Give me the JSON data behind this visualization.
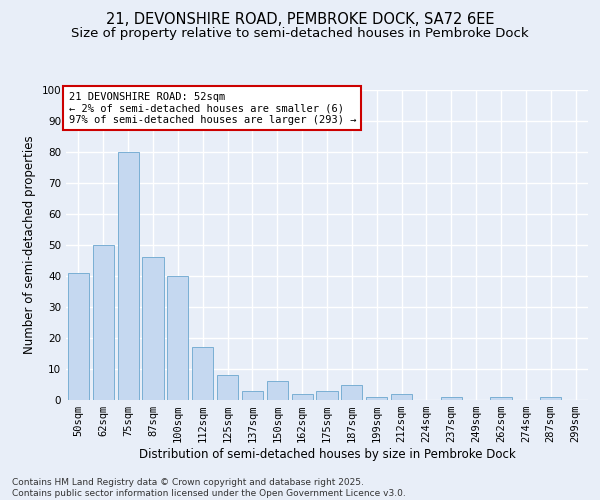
{
  "title_line1": "21, DEVONSHIRE ROAD, PEMBROKE DOCK, SA72 6EE",
  "title_line2": "Size of property relative to semi-detached houses in Pembroke Dock",
  "xlabel": "Distribution of semi-detached houses by size in Pembroke Dock",
  "ylabel": "Number of semi-detached properties",
  "categories": [
    "50sqm",
    "62sqm",
    "75sqm",
    "87sqm",
    "100sqm",
    "112sqm",
    "125sqm",
    "137sqm",
    "150sqm",
    "162sqm",
    "175sqm",
    "187sqm",
    "199sqm",
    "212sqm",
    "224sqm",
    "237sqm",
    "249sqm",
    "262sqm",
    "274sqm",
    "287sqm",
    "299sqm"
  ],
  "values": [
    41,
    50,
    80,
    46,
    40,
    17,
    8,
    3,
    6,
    2,
    3,
    5,
    1,
    2,
    0,
    1,
    0,
    1,
    0,
    1,
    0
  ],
  "bar_color": "#c5d8f0",
  "bar_edge_color": "#7aafd4",
  "annotation_text": "21 DEVONSHIRE ROAD: 52sqm\n← 2% of semi-detached houses are smaller (6)\n97% of semi-detached houses are larger (293) →",
  "annotation_box_color": "#ffffff",
  "annotation_box_edge_color": "#cc0000",
  "ylim": [
    0,
    100
  ],
  "yticks": [
    0,
    10,
    20,
    30,
    40,
    50,
    60,
    70,
    80,
    90,
    100
  ],
  "background_color": "#e8eef8",
  "grid_color": "#ffffff",
  "title_fontsize": 10.5,
  "subtitle_fontsize": 9.5,
  "axis_label_fontsize": 8.5,
  "tick_fontsize": 7.5,
  "annotation_fontsize": 7.5,
  "footer_fontsize": 6.5,
  "footer_line1": "Contains HM Land Registry data © Crown copyright and database right 2025.",
  "footer_line2": "Contains public sector information licensed under the Open Government Licence v3.0."
}
